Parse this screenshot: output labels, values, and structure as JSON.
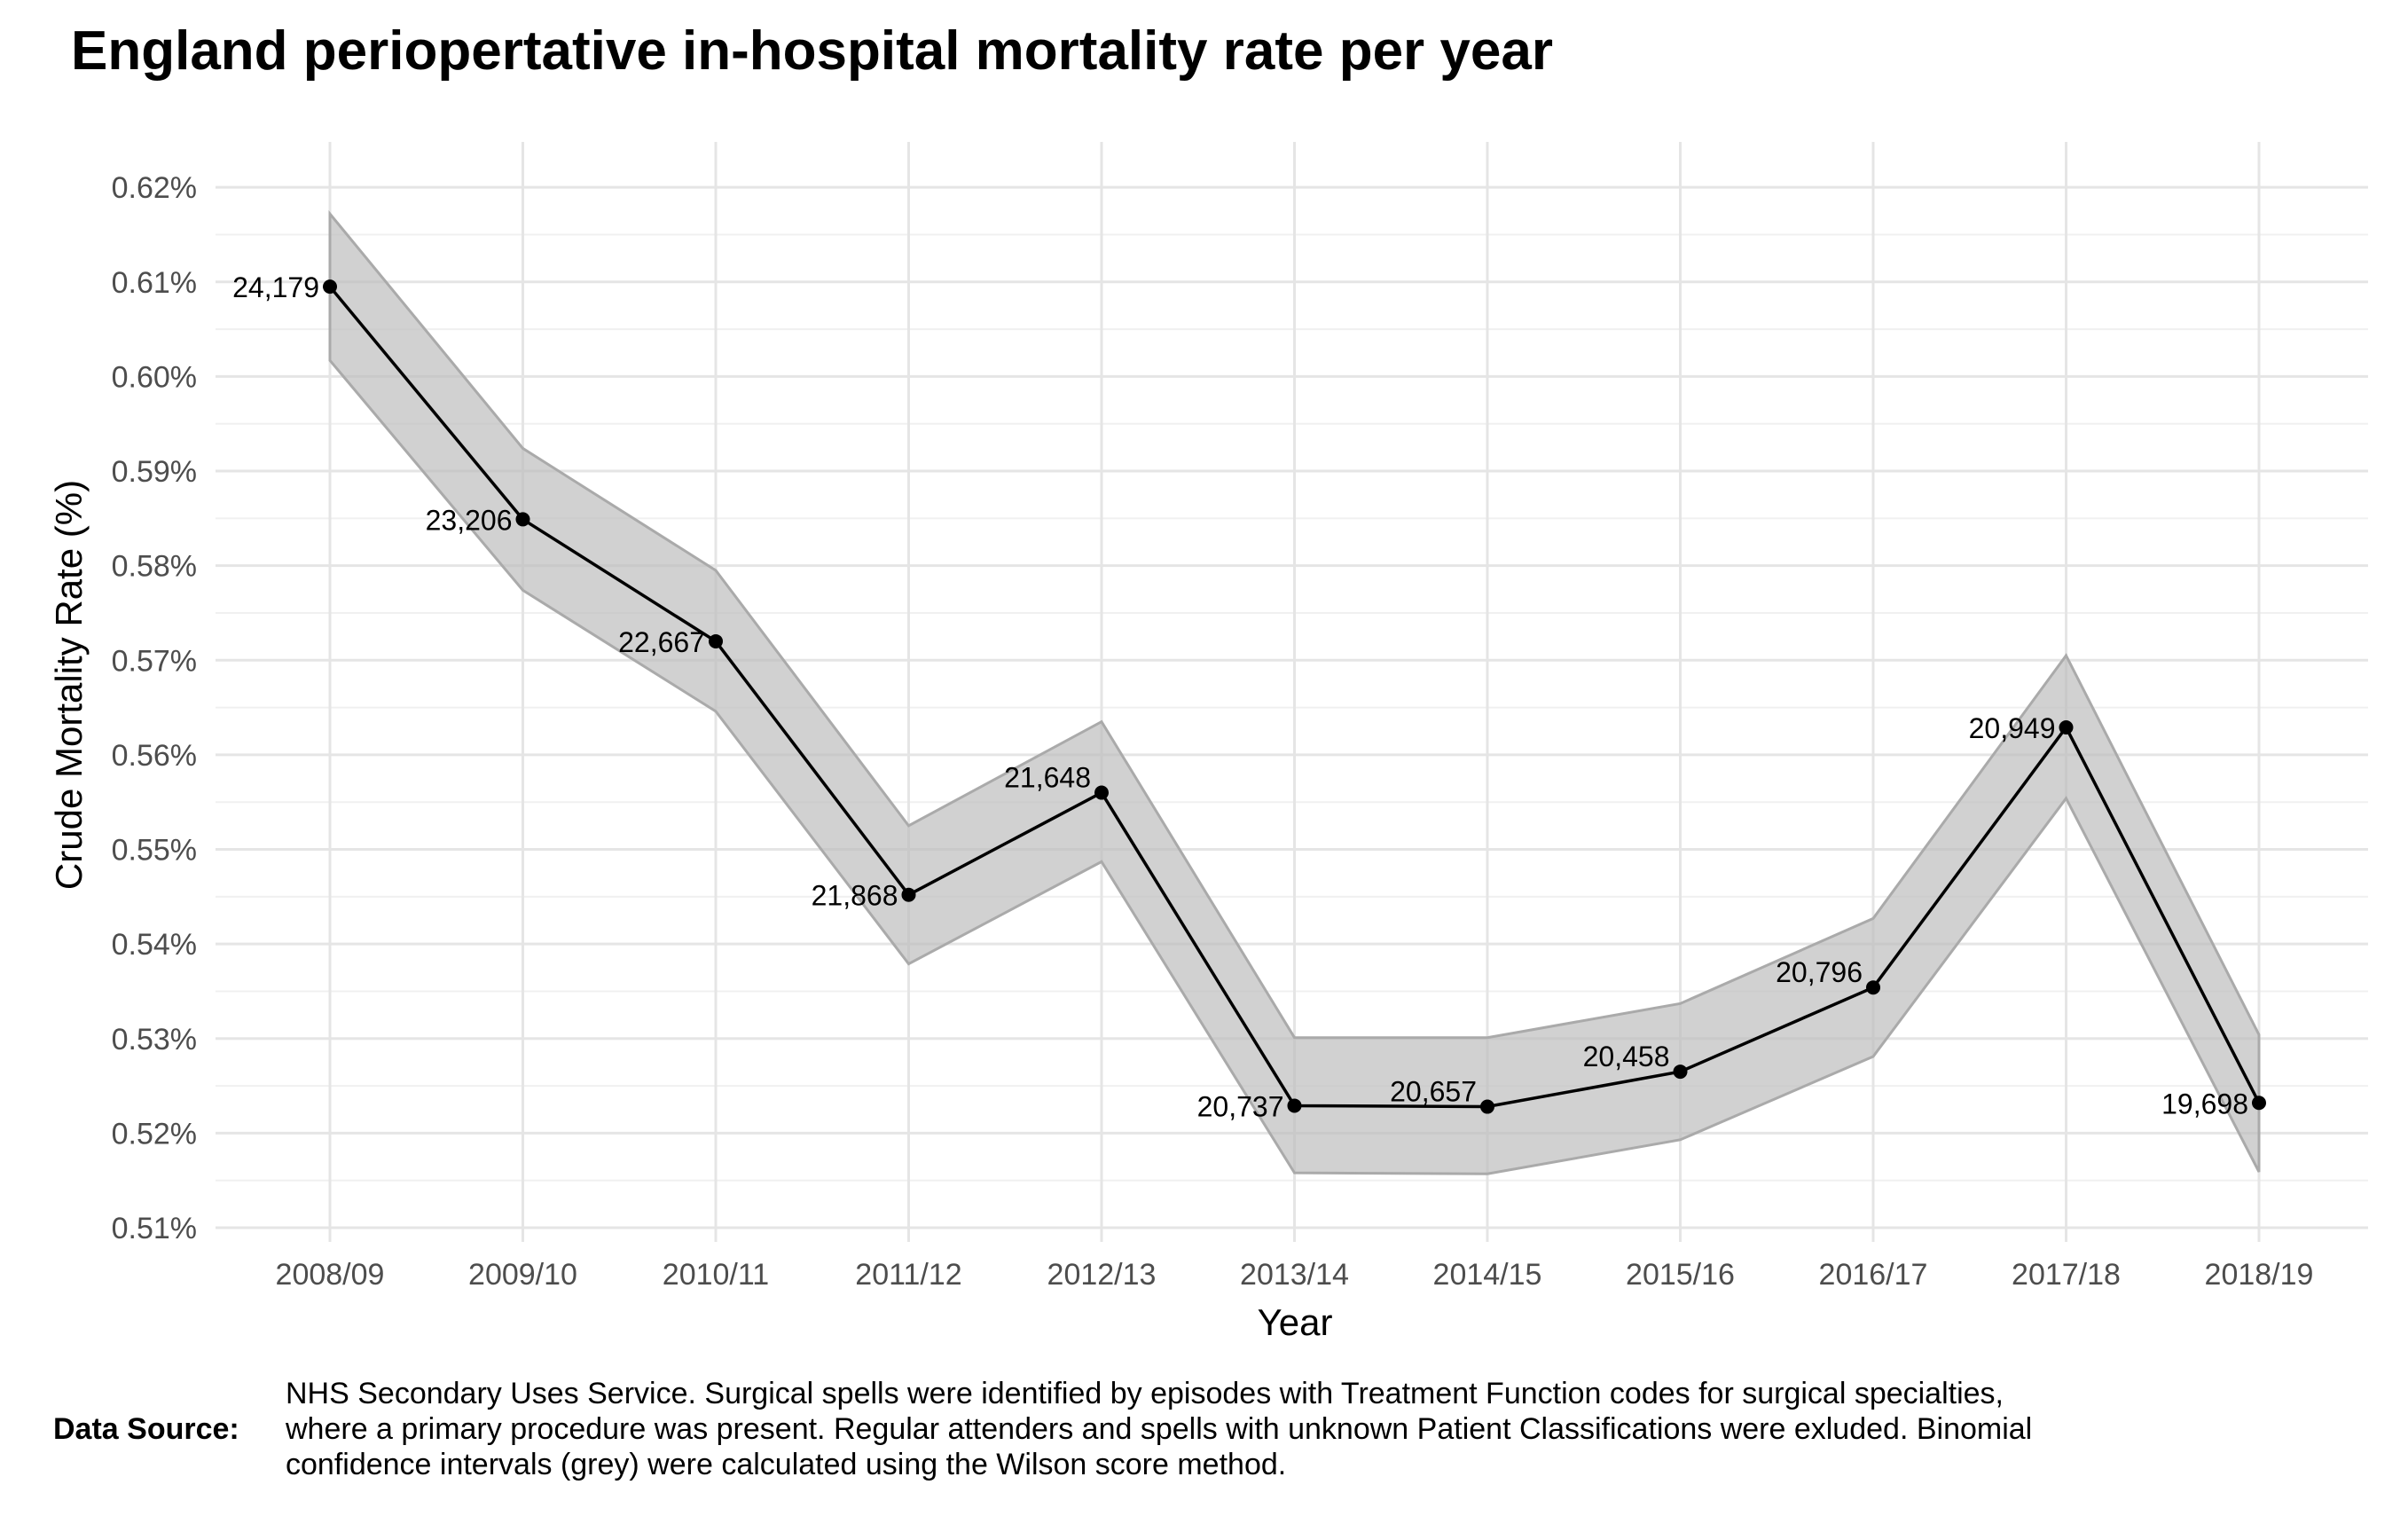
{
  "chart_data": {
    "type": "line",
    "title": "England periopertative in-hospital mortality rate per year",
    "xlabel": "Year",
    "ylabel": "Crude Mortality Rate (%)",
    "categories": [
      "2008/09",
      "2009/10",
      "2010/11",
      "2011/12",
      "2012/13",
      "2013/14",
      "2014/15",
      "2015/16",
      "2016/17",
      "2017/18",
      "2018/19"
    ],
    "y_ticks": [
      "0.51%",
      "0.52%",
      "0.53%",
      "0.54%",
      "0.55%",
      "0.56%",
      "0.57%",
      "0.58%",
      "0.59%",
      "0.60%",
      "0.61%",
      "0.62%"
    ],
    "ylim": [
      0.5085,
      0.6248
    ],
    "grid": true,
    "series": [
      {
        "values": [
          0.6095,
          0.5849,
          0.572,
          0.5452,
          0.556,
          0.5229,
          0.5228,
          0.5265,
          0.5354,
          0.5629,
          0.5232
        ],
        "labels": [
          "24,179",
          "23,206",
          "22,667",
          "21,868",
          "21,648",
          "20,737",
          "20,657",
          "20,458",
          "20,796",
          "20,949",
          "19,698"
        ],
        "ci_lower": [
          0.6017,
          0.5774,
          0.5646,
          0.5379,
          0.5487,
          0.5158,
          0.5157,
          0.5193,
          0.5281,
          0.5554,
          0.5159
        ],
        "ci_upper": [
          0.6172,
          0.5924,
          0.5795,
          0.5525,
          0.5635,
          0.5301,
          0.5301,
          0.5337,
          0.5427,
          0.5705,
          0.5304
        ],
        "line_color": "#000000",
        "ribbon_color": "#bebebe"
      }
    ]
  },
  "footnote": {
    "label": "Data Source:",
    "lines": [
      "NHS Secondary Uses Service.  Surgical spells were identified by episodes with Treatment Function codes for surgical specialties,",
      "where a primary procedure was present. Regular attenders and spells with unknown Patient Classifications were exluded. Binomial",
      "confidence intervals (grey) were calculated using the Wilson score method."
    ]
  }
}
